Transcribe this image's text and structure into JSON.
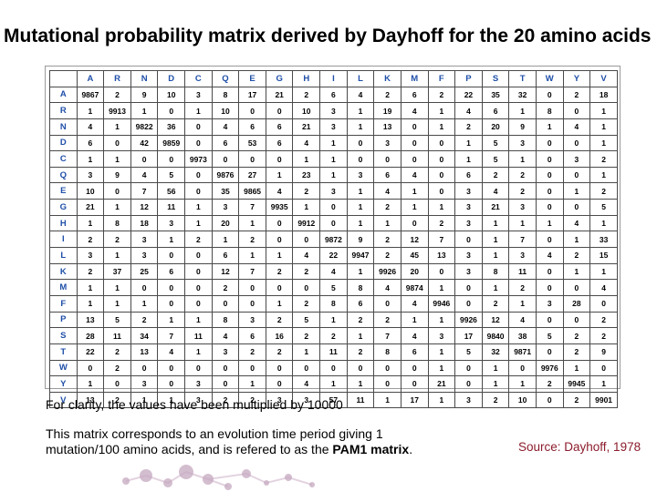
{
  "title": "Mutational probability matrix derived by Dayhoff for the 20 amino acids",
  "matrix": {
    "amino_acids": [
      "A",
      "R",
      "N",
      "D",
      "C",
      "Q",
      "E",
      "G",
      "H",
      "I",
      "L",
      "K",
      "M",
      "F",
      "P",
      "S",
      "T",
      "W",
      "Y",
      "V"
    ],
    "rows": [
      [
        "9867",
        "2",
        "9",
        "10",
        "3",
        "8",
        "17",
        "21",
        "2",
        "6",
        "4",
        "2",
        "6",
        "2",
        "22",
        "35",
        "32",
        "0",
        "2",
        "18"
      ],
      [
        "1",
        "9913",
        "1",
        "0",
        "1",
        "10",
        "0",
        "0",
        "10",
        "3",
        "1",
        "19",
        "4",
        "1",
        "4",
        "6",
        "1",
        "8",
        "0",
        "1"
      ],
      [
        "4",
        "1",
        "9822",
        "36",
        "0",
        "4",
        "6",
        "6",
        "21",
        "3",
        "1",
        "13",
        "0",
        "1",
        "2",
        "20",
        "9",
        "1",
        "4",
        "1"
      ],
      [
        "6",
        "0",
        "42",
        "9859",
        "0",
        "6",
        "53",
        "6",
        "4",
        "1",
        "0",
        "3",
        "0",
        "0",
        "1",
        "5",
        "3",
        "0",
        "0",
        "1"
      ],
      [
        "1",
        "1",
        "0",
        "0",
        "9973",
        "0",
        "0",
        "0",
        "1",
        "1",
        "0",
        "0",
        "0",
        "0",
        "1",
        "5",
        "1",
        "0",
        "3",
        "2"
      ],
      [
        "3",
        "9",
        "4",
        "5",
        "0",
        "9876",
        "27",
        "1",
        "23",
        "1",
        "3",
        "6",
        "4",
        "0",
        "6",
        "2",
        "2",
        "0",
        "0",
        "1"
      ],
      [
        "10",
        "0",
        "7",
        "56",
        "0",
        "35",
        "9865",
        "4",
        "2",
        "3",
        "1",
        "4",
        "1",
        "0",
        "3",
        "4",
        "2",
        "0",
        "1",
        "2"
      ],
      [
        "21",
        "1",
        "12",
        "11",
        "1",
        "3",
        "7",
        "9935",
        "1",
        "0",
        "1",
        "2",
        "1",
        "1",
        "3",
        "21",
        "3",
        "0",
        "0",
        "5"
      ],
      [
        "1",
        "8",
        "18",
        "3",
        "1",
        "20",
        "1",
        "0",
        "9912",
        "0",
        "1",
        "1",
        "0",
        "2",
        "3",
        "1",
        "1",
        "1",
        "4",
        "1"
      ],
      [
        "2",
        "2",
        "3",
        "1",
        "2",
        "1",
        "2",
        "0",
        "0",
        "9872",
        "9",
        "2",
        "12",
        "7",
        "0",
        "1",
        "7",
        "0",
        "1",
        "33"
      ],
      [
        "3",
        "1",
        "3",
        "0",
        "0",
        "6",
        "1",
        "1",
        "4",
        "22",
        "9947",
        "2",
        "45",
        "13",
        "3",
        "1",
        "3",
        "4",
        "2",
        "15"
      ],
      [
        "2",
        "37",
        "25",
        "6",
        "0",
        "12",
        "7",
        "2",
        "2",
        "4",
        "1",
        "9926",
        "20",
        "0",
        "3",
        "8",
        "11",
        "0",
        "1",
        "1"
      ],
      [
        "1",
        "1",
        "0",
        "0",
        "0",
        "2",
        "0",
        "0",
        "0",
        "5",
        "8",
        "4",
        "9874",
        "1",
        "0",
        "1",
        "2",
        "0",
        "0",
        "4"
      ],
      [
        "1",
        "1",
        "1",
        "0",
        "0",
        "0",
        "0",
        "1",
        "2",
        "8",
        "6",
        "0",
        "4",
        "9946",
        "0",
        "2",
        "1",
        "3",
        "28",
        "0"
      ],
      [
        "13",
        "5",
        "2",
        "1",
        "1",
        "8",
        "3",
        "2",
        "5",
        "1",
        "2",
        "2",
        "1",
        "1",
        "9926",
        "12",
        "4",
        "0",
        "0",
        "2"
      ],
      [
        "28",
        "11",
        "34",
        "7",
        "11",
        "4",
        "6",
        "16",
        "2",
        "2",
        "1",
        "7",
        "4",
        "3",
        "17",
        "9840",
        "38",
        "5",
        "2",
        "2"
      ],
      [
        "22",
        "2",
        "13",
        "4",
        "1",
        "3",
        "2",
        "2",
        "1",
        "11",
        "2",
        "8",
        "6",
        "1",
        "5",
        "32",
        "9871",
        "0",
        "2",
        "9"
      ],
      [
        "0",
        "2",
        "0",
        "0",
        "0",
        "0",
        "0",
        "0",
        "0",
        "0",
        "0",
        "0",
        "0",
        "1",
        "0",
        "1",
        "0",
        "9976",
        "1",
        "0"
      ],
      [
        "1",
        "0",
        "3",
        "0",
        "3",
        "0",
        "1",
        "0",
        "4",
        "1",
        "1",
        "0",
        "0",
        "21",
        "0",
        "1",
        "1",
        "2",
        "9945",
        "1"
      ],
      [
        "13",
        "2",
        "1",
        "1",
        "3",
        "2",
        "2",
        "3",
        "3",
        "57",
        "11",
        "1",
        "17",
        "1",
        "3",
        "2",
        "10",
        "0",
        "2",
        "9901"
      ]
    ]
  },
  "note1": "For clarity, the values have been multiplied by 10000",
  "note2_line1": "This matrix corresponds to an evolution time period giving 1",
  "note2_line2_prefix": "mutation/100 amino acids, and is refered to as the ",
  "note2_line2_bold": "PAM1 matrix",
  "note2_line2_suffix": ".",
  "source": "Source: Dayhoff, 1978",
  "colors": {
    "header": "#1f4fa8",
    "source": "#8b1c2c",
    "logo": "#b08aa8"
  }
}
